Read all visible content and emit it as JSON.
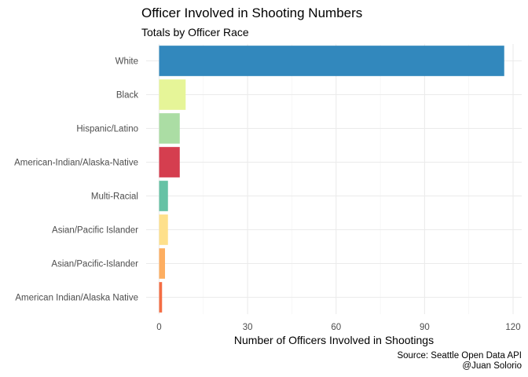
{
  "chart_data": {
    "type": "bar",
    "orientation": "horizontal",
    "title": "Officer Involved in Shooting Numbers",
    "subtitle": "Totals by Officer Race",
    "xlabel": "Number of Officers Involved in Shootings",
    "ylabel": "",
    "xlim": [
      0,
      120
    ],
    "xticks": [
      0,
      30,
      60,
      90,
      120
    ],
    "grid": true,
    "legend": "none",
    "categories": [
      "White",
      "Black",
      "Hispanic/Latino",
      "American-Indian/Alaska-Native",
      "Multi-Racial",
      "Asian/Pacific Islander",
      "Asian/Pacific-Islander",
      "American Indian/Alaska Native"
    ],
    "values": [
      117,
      9,
      7,
      7,
      3,
      3,
      2,
      1
    ],
    "colors": [
      "#3288BD",
      "#E6F598",
      "#ABDDA4",
      "#D53E4F",
      "#66C2A5",
      "#FEE08B",
      "#FDAE61",
      "#F46D43"
    ],
    "caption_lines": [
      "Source: Seattle Open Data API",
      "@Juan Solorio"
    ]
  }
}
